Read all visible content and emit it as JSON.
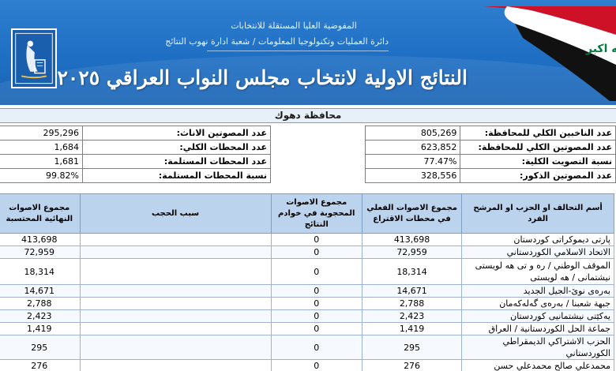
{
  "header": {
    "subtitle_line1": "المفوضية العليا المستقلة للانتخابات",
    "subtitle_line2": "دائرة العمليات وتكنولوجيا المعلومات / شعبة ادارة نهوب النتائج",
    "title": "النتائج الاولية لانتخاب مجلس النواب العراقي ٢٠٢٥",
    "logo_icon": "ihec-logo-icon",
    "flag_icon": "iraq-flag-icon"
  },
  "province": "محافظة دهوك",
  "summary_right": [
    {
      "label": "عدد الناخبين الكلي للمحافظة:",
      "value": "805,269"
    },
    {
      "label": "عدد المصوتين الكلي للمحافظة:",
      "value": "623,852"
    },
    {
      "label": "نسبة التصويت الكلية:",
      "value": "77.47%"
    },
    {
      "label": "عدد المصوتين الذكور:",
      "value": "328,556"
    }
  ],
  "summary_left": [
    {
      "label": "عدد المصوتين الاناث:",
      "value": "295,296"
    },
    {
      "label": "عدد المحطات الكلي:",
      "value": "1,684"
    },
    {
      "label": "عدد المحطات المستلمة:",
      "value": "1,681"
    },
    {
      "label": "نسبة المحطات المستلمة:",
      "value": "99.82%"
    }
  ],
  "table": {
    "headers": {
      "name": "أسم التحالف او الحزب او المرشح الفرد",
      "actual": "مجموع الاصوات الفعلي في محطات الاقتراع",
      "blocked": "مجموع الاصوات المحجوبة في خوادم النتائج",
      "reason": "سبب الحجب",
      "total": "مجموع الاصوات النهائية المحتسبة"
    },
    "rows": [
      {
        "name": "پارتى ديموكراتى كوردستان",
        "actual": "413,698",
        "blocked": "0",
        "reason": "",
        "total": "413,698"
      },
      {
        "name": "الاتحاد الاسلامي الكوردستاني",
        "actual": "72,959",
        "blocked": "0",
        "reason": "",
        "total": "72,959"
      },
      {
        "name": "الموقف الوطني / ره و تى هه لويستى نيشتمانى / هه لويستى",
        "actual": "18,314",
        "blocked": "0",
        "reason": "",
        "total": "18,314"
      },
      {
        "name": "بەرەی نوێ-الجيل الجديد",
        "actual": "14,671",
        "blocked": "0",
        "reason": "",
        "total": "14,671"
      },
      {
        "name": "جبهة شعبنا / بەرەی گەلەکەمان",
        "actual": "2,788",
        "blocked": "0",
        "reason": "",
        "total": "2,788"
      },
      {
        "name": "يەكێتی نیشتمانیی كوردستان",
        "actual": "2,423",
        "blocked": "0",
        "reason": "",
        "total": "2,423"
      },
      {
        "name": "جماعة الحل الكوردستانية / العراق",
        "actual": "1,419",
        "blocked": "0",
        "reason": "",
        "total": "1,419"
      },
      {
        "name": "الحزب الاشتراكي الديمقراطي الكوردستاني",
        "actual": "295",
        "blocked": "0",
        "reason": "",
        "total": "295"
      },
      {
        "name": "محمدعلي صالح محمدعلي حسن",
        "actual": "276",
        "blocked": "0",
        "reason": "",
        "total": "276"
      }
    ]
  }
}
